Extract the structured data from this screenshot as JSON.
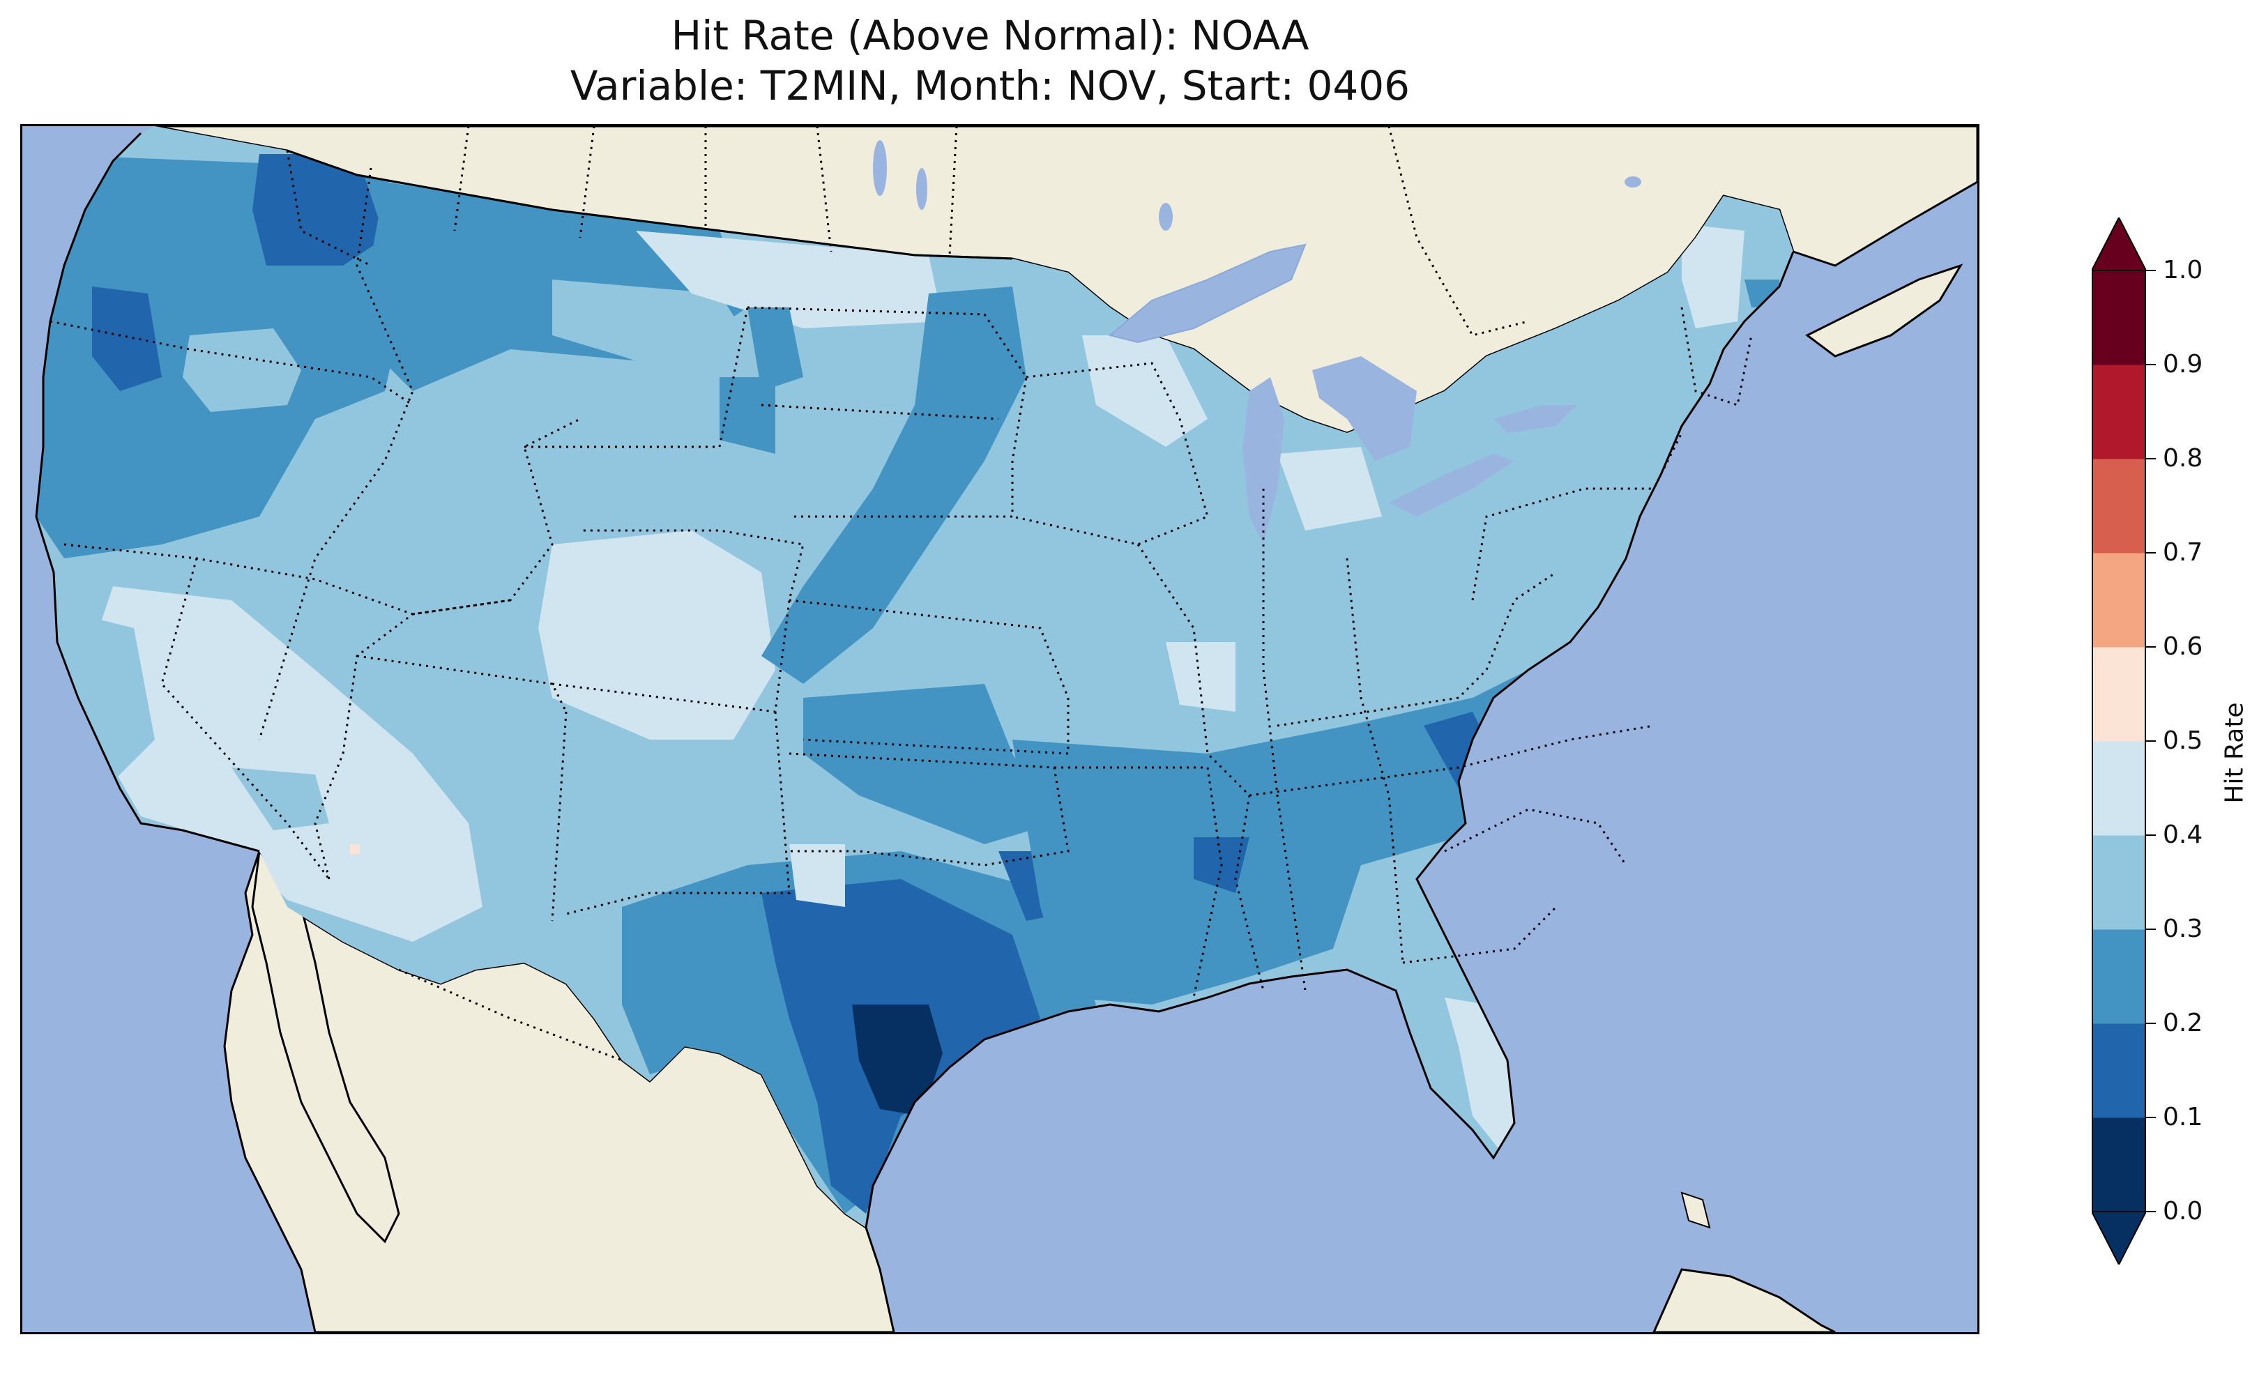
{
  "title": {
    "line1": "Hit Rate (Above Normal): NOAA",
    "line2": "Variable: T2MIN, Month: NOV, Start: 0406"
  },
  "colorbar": {
    "label": "Hit Rate",
    "ticks": [
      "0.0",
      "0.1",
      "0.2",
      "0.3",
      "0.4",
      "0.5",
      "0.6",
      "0.7",
      "0.8",
      "0.9",
      "1.0"
    ],
    "bins": [
      {
        "range": [
          0.0,
          0.1
        ],
        "color": "#053061"
      },
      {
        "range": [
          0.1,
          0.2
        ],
        "color": "#2166ac"
      },
      {
        "range": [
          0.2,
          0.3
        ],
        "color": "#4393c3"
      },
      {
        "range": [
          0.3,
          0.4
        ],
        "color": "#92c5de"
      },
      {
        "range": [
          0.4,
          0.5
        ],
        "color": "#d1e5f0"
      },
      {
        "range": [
          0.5,
          0.6
        ],
        "color": "#fbe3d6"
      },
      {
        "range": [
          0.6,
          0.7
        ],
        "color": "#f4a582"
      },
      {
        "range": [
          0.7,
          0.8
        ],
        "color": "#d6604d"
      },
      {
        "range": [
          0.8,
          0.9
        ],
        "color": "#b2182b"
      },
      {
        "range": [
          0.9,
          1.0
        ],
        "color": "#67001f"
      }
    ],
    "extend": "both"
  },
  "map": {
    "ocean_color": "#9ab4e0",
    "land_color": "#f0eddc",
    "lake_color": "#9ab4e0",
    "region": "contiguous United States",
    "states": [
      {
        "name": "washington",
        "hit_rate": 0.25
      },
      {
        "name": "oregon",
        "hit_rate": 0.28
      },
      {
        "name": "california",
        "hit_rate": 0.38
      },
      {
        "name": "nevada",
        "hit_rate": 0.36
      },
      {
        "name": "idaho",
        "hit_rate": 0.3
      },
      {
        "name": "montana",
        "hit_rate": 0.35
      },
      {
        "name": "wyoming",
        "hit_rate": 0.35
      },
      {
        "name": "utah",
        "hit_rate": 0.36
      },
      {
        "name": "arizona",
        "hit_rate": 0.36
      },
      {
        "name": "colorado",
        "hit_rate": 0.4
      },
      {
        "name": "new-mexico",
        "hit_rate": 0.33
      },
      {
        "name": "north-dakota",
        "hit_rate": 0.38
      },
      {
        "name": "south-dakota",
        "hit_rate": 0.33
      },
      {
        "name": "nebraska",
        "hit_rate": 0.33
      },
      {
        "name": "kansas",
        "hit_rate": 0.3
      },
      {
        "name": "oklahoma",
        "hit_rate": 0.25
      },
      {
        "name": "texas",
        "hit_rate": 0.18
      },
      {
        "name": "minnesota",
        "hit_rate": 0.35
      },
      {
        "name": "iowa",
        "hit_rate": 0.35
      },
      {
        "name": "missouri",
        "hit_rate": 0.3
      },
      {
        "name": "arkansas",
        "hit_rate": 0.25
      },
      {
        "name": "louisiana",
        "hit_rate": 0.25
      },
      {
        "name": "wisconsin",
        "hit_rate": 0.38
      },
      {
        "name": "illinois",
        "hit_rate": 0.36
      },
      {
        "name": "michigan",
        "hit_rate": 0.38
      },
      {
        "name": "indiana",
        "hit_rate": 0.35
      },
      {
        "name": "ohio",
        "hit_rate": 0.35
      },
      {
        "name": "kentucky",
        "hit_rate": 0.27
      },
      {
        "name": "tennessee",
        "hit_rate": 0.26
      },
      {
        "name": "mississippi",
        "hit_rate": 0.26
      },
      {
        "name": "alabama",
        "hit_rate": 0.26
      },
      {
        "name": "georgia",
        "hit_rate": 0.3
      },
      {
        "name": "florida",
        "hit_rate": 0.38
      },
      {
        "name": "south-carolina",
        "hit_rate": 0.35
      },
      {
        "name": "north-carolina",
        "hit_rate": 0.26
      },
      {
        "name": "virginia",
        "hit_rate": 0.26
      },
      {
        "name": "west-virginia",
        "hit_rate": 0.25
      },
      {
        "name": "pennsylvania",
        "hit_rate": 0.35
      },
      {
        "name": "new-york",
        "hit_rate": 0.35
      },
      {
        "name": "new-england",
        "hit_rate": 0.35
      }
    ]
  }
}
